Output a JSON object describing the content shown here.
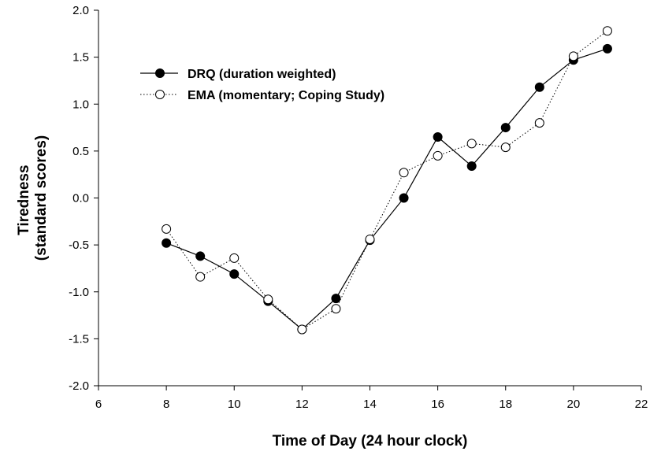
{
  "chart_data": {
    "type": "line",
    "xlabel": "Time of Day (24 hour clock)",
    "ylabel_lines": [
      "Tiredness",
      "(standard scores)"
    ],
    "xlim": [
      6,
      22
    ],
    "ylim": [
      -2.0,
      2.0
    ],
    "xticks": [
      6,
      8,
      10,
      12,
      14,
      16,
      18,
      20,
      22
    ],
    "yticks": [
      "-2.0",
      "-1.5",
      "-1.0",
      "-0.5",
      "0.0",
      "0.5",
      "1.0",
      "1.5",
      "2.0"
    ],
    "grid": false,
    "legend_position": "top-left",
    "x": [
      8,
      9,
      10,
      11,
      12,
      13,
      14,
      15,
      16,
      17,
      18,
      19,
      20,
      21
    ],
    "series": [
      {
        "name": "DRQ (duration weighted)",
        "marker": "filled-circle",
        "line": "solid",
        "values": [
          -0.48,
          -0.62,
          -0.81,
          -1.1,
          -1.4,
          -1.07,
          -0.45,
          0.0,
          0.65,
          0.34,
          0.75,
          1.18,
          1.47,
          1.59
        ]
      },
      {
        "name": "EMA (momentary; Coping Study)",
        "marker": "open-circle",
        "line": "dotted",
        "values": [
          -0.33,
          -0.84,
          -0.64,
          -1.08,
          -1.4,
          -1.18,
          -0.44,
          0.27,
          0.45,
          0.58,
          0.54,
          0.8,
          1.51,
          1.78
        ]
      }
    ]
  },
  "colors": {
    "line": "#000000",
    "open_marker_fill": "#ffffff"
  }
}
